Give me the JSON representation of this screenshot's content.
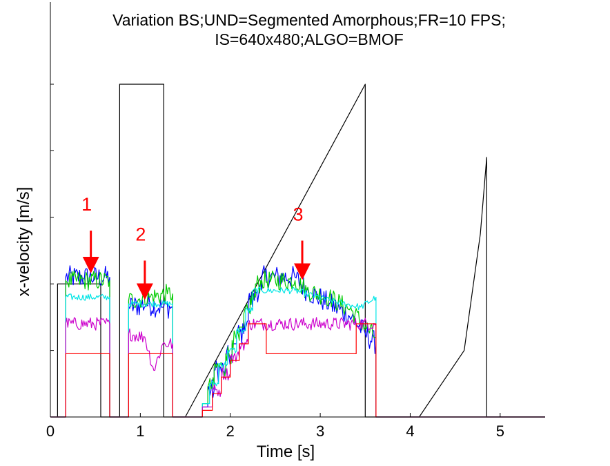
{
  "chart_data": {
    "type": "line",
    "title": "Variation BS;UND=Segmented Amorphous;FR=10 FPS;",
    "subtitle": "IS=640x480;ALGO=BMOF",
    "xlabel": "Time [s]",
    "ylabel": "x-velocity [m/s]",
    "xlim": [
      0,
      5.5
    ],
    "ylim": [
      0,
      1
    ],
    "x_ticks": [
      "0",
      "1",
      "2",
      "3",
      "4",
      "5"
    ],
    "y_tick_values": [
      0.2,
      0.4,
      0.6,
      0.8,
      1.0
    ],
    "grid": false,
    "annotations": [
      {
        "label": "1",
        "x": 0.45,
        "y_text": 0.62,
        "y_arrow_from": 0.56,
        "y_arrow_to": 0.44
      },
      {
        "label": "2",
        "x": 1.05,
        "y_text": 0.53,
        "y_arrow_from": 0.47,
        "y_arrow_to": 0.36
      },
      {
        "label": "3",
        "x": 2.8,
        "y_text": 0.59,
        "y_arrow_from": 0.53,
        "y_arrow_to": 0.42
      }
    ],
    "series": [
      {
        "color": "#000000",
        "noise": 0,
        "points": [
          [
            0.08,
            0
          ],
          [
            0.08,
            0.4
          ],
          [
            0.56,
            0.4
          ],
          [
            0.56,
            0
          ],
          [
            0.77,
            0
          ],
          [
            0.77,
            1.0
          ],
          [
            1.26,
            1.0
          ],
          [
            1.26,
            0
          ],
          [
            1.5,
            0
          ],
          [
            3.5,
            1.0
          ],
          [
            3.5,
            0
          ],
          [
            4.1,
            0
          ],
          [
            4.6,
            0.2
          ],
          [
            4.78,
            0.55
          ],
          [
            4.85,
            0.78
          ],
          [
            4.85,
            0
          ],
          [
            5.5,
            0
          ]
        ]
      },
      {
        "color": "#0000ff",
        "noise": 0.035,
        "points": [
          [
            0,
            0
          ],
          [
            0.17,
            0
          ],
          [
            0.17,
            0.42
          ],
          [
            0.66,
            0.42
          ],
          [
            0.66,
            0
          ],
          [
            0.87,
            0
          ],
          [
            0.87,
            0.33
          ],
          [
            1.07,
            0.34
          ],
          [
            1.25,
            0.33
          ],
          [
            1.36,
            0.33
          ],
          [
            1.36,
            0
          ],
          [
            1.69,
            0
          ],
          [
            1.69,
            0.03
          ],
          [
            1.75,
            0.03
          ],
          [
            1.75,
            0.08
          ],
          [
            1.82,
            0.08
          ],
          [
            1.82,
            0.14
          ],
          [
            1.95,
            0.14
          ],
          [
            1.95,
            0.18
          ],
          [
            2.02,
            0.18
          ],
          [
            2.02,
            0.22
          ],
          [
            2.07,
            0.22
          ],
          [
            2.07,
            0.25
          ],
          [
            2.15,
            0.25
          ],
          [
            2.15,
            0.29
          ],
          [
            2.2,
            0.29
          ],
          [
            2.2,
            0.35
          ],
          [
            2.27,
            0.35
          ],
          [
            2.27,
            0.38
          ],
          [
            2.35,
            0.38
          ],
          [
            2.35,
            0.42
          ],
          [
            2.72,
            0.42
          ],
          [
            2.85,
            0.38
          ],
          [
            3.1,
            0.34
          ],
          [
            3.35,
            0.3
          ],
          [
            3.5,
            0.25
          ],
          [
            3.62,
            0.22
          ],
          [
            3.62,
            0
          ],
          [
            5.5,
            0
          ]
        ]
      },
      {
        "color": "#00cc00",
        "noise": 0.03,
        "points": [
          [
            0,
            0
          ],
          [
            0.17,
            0
          ],
          [
            0.17,
            0.41
          ],
          [
            0.66,
            0.41
          ],
          [
            0.66,
            0
          ],
          [
            0.87,
            0
          ],
          [
            0.87,
            0.35
          ],
          [
            1.1,
            0.36
          ],
          [
            1.3,
            0.37
          ],
          [
            1.36,
            0.37
          ],
          [
            1.36,
            0
          ],
          [
            1.69,
            0
          ],
          [
            1.69,
            0.04
          ],
          [
            1.75,
            0.04
          ],
          [
            1.75,
            0.09
          ],
          [
            1.82,
            0.09
          ],
          [
            1.82,
            0.15
          ],
          [
            1.95,
            0.15
          ],
          [
            1.95,
            0.19
          ],
          [
            2.02,
            0.19
          ],
          [
            2.02,
            0.23
          ],
          [
            2.1,
            0.23
          ],
          [
            2.1,
            0.27
          ],
          [
            2.15,
            0.27
          ],
          [
            2.15,
            0.31
          ],
          [
            2.22,
            0.31
          ],
          [
            2.22,
            0.36
          ],
          [
            2.28,
            0.36
          ],
          [
            2.28,
            0.4
          ],
          [
            2.35,
            0.4
          ],
          [
            2.35,
            0.41
          ],
          [
            2.72,
            0.41
          ],
          [
            2.85,
            0.38
          ],
          [
            3.1,
            0.36
          ],
          [
            3.35,
            0.32
          ],
          [
            3.5,
            0.27
          ],
          [
            3.62,
            0.24
          ],
          [
            3.62,
            0
          ],
          [
            5.5,
            0
          ]
        ]
      },
      {
        "color": "#00e5e5",
        "noise": 0.01,
        "points": [
          [
            0,
            0
          ],
          [
            0.17,
            0
          ],
          [
            0.17,
            0.36
          ],
          [
            0.66,
            0.36
          ],
          [
            0.66,
            0
          ],
          [
            0.87,
            0
          ],
          [
            0.87,
            0.34
          ],
          [
            1.36,
            0.34
          ],
          [
            1.36,
            0
          ],
          [
            1.69,
            0
          ],
          [
            1.69,
            0.04
          ],
          [
            1.77,
            0.04
          ],
          [
            1.77,
            0.1
          ],
          [
            1.87,
            0.1
          ],
          [
            1.87,
            0.16
          ],
          [
            1.97,
            0.16
          ],
          [
            1.97,
            0.2
          ],
          [
            2.07,
            0.2
          ],
          [
            2.07,
            0.26
          ],
          [
            2.17,
            0.26
          ],
          [
            2.17,
            0.32
          ],
          [
            2.25,
            0.32
          ],
          [
            2.25,
            0.38
          ],
          [
            2.35,
            0.38
          ],
          [
            2.35,
            0.38
          ],
          [
            2.72,
            0.38
          ],
          [
            2.85,
            0.37
          ],
          [
            3.1,
            0.35
          ],
          [
            3.45,
            0.33
          ],
          [
            3.62,
            0.36
          ],
          [
            3.62,
            0
          ],
          [
            5.5,
            0
          ]
        ]
      },
      {
        "color": "#cc00cc",
        "noise": 0.02,
        "points": [
          [
            0,
            0
          ],
          [
            0.17,
            0
          ],
          [
            0.17,
            0.28
          ],
          [
            0.66,
            0.28
          ],
          [
            0.66,
            0
          ],
          [
            0.87,
            0
          ],
          [
            0.87,
            0.25
          ],
          [
            1.05,
            0.24
          ],
          [
            1.15,
            0.14
          ],
          [
            1.25,
            0.22
          ],
          [
            1.36,
            0.22
          ],
          [
            1.36,
            0
          ],
          [
            1.69,
            0
          ],
          [
            1.69,
            0.03
          ],
          [
            1.8,
            0.03
          ],
          [
            1.8,
            0.08
          ],
          [
            1.9,
            0.08
          ],
          [
            1.9,
            0.13
          ],
          [
            2.0,
            0.13
          ],
          [
            2.0,
            0.18
          ],
          [
            2.1,
            0.18
          ],
          [
            2.1,
            0.22
          ],
          [
            2.2,
            0.22
          ],
          [
            2.2,
            0.28
          ],
          [
            3.62,
            0.28
          ],
          [
            3.62,
            0
          ],
          [
            5.5,
            0
          ]
        ]
      },
      {
        "color": "#ff0000",
        "noise": 0,
        "points": [
          [
            0,
            0
          ],
          [
            0.17,
            0
          ],
          [
            0.17,
            0.19
          ],
          [
            0.66,
            0.19
          ],
          [
            0.66,
            0
          ],
          [
            0.87,
            0
          ],
          [
            0.87,
            0.19
          ],
          [
            1.36,
            0.19
          ],
          [
            1.36,
            0
          ],
          [
            1.69,
            0
          ],
          [
            1.69,
            0.02
          ],
          [
            1.8,
            0.02
          ],
          [
            1.8,
            0.07
          ],
          [
            1.9,
            0.07
          ],
          [
            1.9,
            0.12
          ],
          [
            2.0,
            0.12
          ],
          [
            2.0,
            0.17
          ],
          [
            2.1,
            0.17
          ],
          [
            2.1,
            0.22
          ],
          [
            2.2,
            0.22
          ],
          [
            2.2,
            0.28
          ],
          [
            2.4,
            0.28
          ],
          [
            2.4,
            0.19
          ],
          [
            3.4,
            0.19
          ],
          [
            3.4,
            0.28
          ],
          [
            3.62,
            0.28
          ],
          [
            3.62,
            0
          ],
          [
            5.5,
            0
          ]
        ]
      }
    ]
  }
}
